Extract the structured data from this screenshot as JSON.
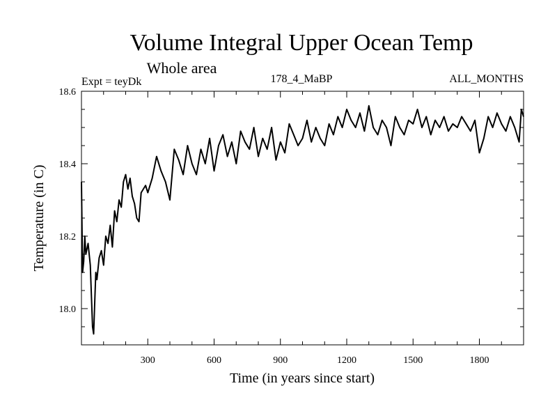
{
  "chart_data": {
    "type": "line",
    "title": "Volume Integral Upper Ocean Temp",
    "subtitle": "Whole area",
    "experiment": "Expt = teyDk",
    "run_label": "178_4_MaBP",
    "months": "ALL_MONTHS",
    "xlabel": "Time (in years since start)",
    "ylabel": "Temperature (in C)",
    "xlim": [
      0,
      2000
    ],
    "ylim": [
      17.9,
      18.6
    ],
    "xticks": [
      300,
      600,
      900,
      1200,
      1500,
      1800
    ],
    "xtick_labels": [
      "300",
      "600",
      "900",
      "1200",
      "1500",
      "1800"
    ],
    "yticks": [
      18.0,
      18.2,
      18.4,
      18.6
    ],
    "ytick_labels": [
      "18.0",
      "18.2",
      "18.4",
      "18.6"
    ],
    "series": [
      {
        "name": "Volume integral upper ocean temperature",
        "color": "#000000",
        "x": [
          0,
          5,
          10,
          15,
          20,
          30,
          40,
          50,
          55,
          60,
          65,
          70,
          80,
          90,
          100,
          110,
          120,
          130,
          140,
          150,
          160,
          170,
          180,
          190,
          200,
          210,
          220,
          230,
          240,
          250,
          260,
          270,
          280,
          290,
          300,
          320,
          340,
          360,
          380,
          400,
          420,
          440,
          460,
          480,
          500,
          520,
          540,
          560,
          580,
          600,
          620,
          640,
          660,
          680,
          700,
          720,
          740,
          760,
          780,
          800,
          820,
          840,
          860,
          880,
          900,
          920,
          940,
          960,
          980,
          1000,
          1020,
          1040,
          1060,
          1080,
          1100,
          1120,
          1140,
          1160,
          1180,
          1200,
          1220,
          1240,
          1260,
          1280,
          1300,
          1320,
          1340,
          1360,
          1380,
          1400,
          1420,
          1440,
          1460,
          1480,
          1500,
          1520,
          1540,
          1560,
          1580,
          1600,
          1620,
          1640,
          1660,
          1680,
          1700,
          1720,
          1740,
          1760,
          1780,
          1800,
          1820,
          1840,
          1860,
          1880,
          1900,
          1920,
          1940,
          1960,
          1980,
          1990,
          2000
        ],
        "values": [
          18.35,
          18.1,
          18.13,
          18.2,
          18.15,
          18.18,
          18.12,
          17.95,
          17.93,
          18.02,
          18.1,
          18.08,
          18.14,
          18.16,
          18.12,
          18.2,
          18.18,
          18.23,
          18.17,
          18.27,
          18.24,
          18.3,
          18.28,
          18.35,
          18.37,
          18.33,
          18.36,
          18.31,
          18.29,
          18.25,
          18.24,
          18.32,
          18.33,
          18.34,
          18.32,
          18.36,
          18.42,
          18.38,
          18.35,
          18.3,
          18.44,
          18.41,
          18.37,
          18.45,
          18.4,
          18.37,
          18.44,
          18.4,
          18.47,
          18.38,
          18.45,
          18.48,
          18.42,
          18.46,
          18.4,
          18.49,
          18.46,
          18.44,
          18.5,
          18.42,
          18.47,
          18.44,
          18.5,
          18.41,
          18.46,
          18.43,
          18.51,
          18.48,
          18.45,
          18.47,
          18.52,
          18.46,
          18.5,
          18.47,
          18.45,
          18.51,
          18.48,
          18.53,
          18.5,
          18.55,
          18.52,
          18.5,
          18.54,
          18.49,
          18.56,
          18.5,
          18.48,
          18.52,
          18.5,
          18.45,
          18.53,
          18.5,
          18.48,
          18.52,
          18.51,
          18.55,
          18.5,
          18.53,
          18.48,
          18.52,
          18.5,
          18.53,
          18.49,
          18.51,
          18.5,
          18.53,
          18.51,
          18.49,
          18.52,
          18.43,
          18.47,
          18.53,
          18.5,
          18.54,
          18.51,
          18.49,
          18.53,
          18.5,
          18.46,
          18.55,
          18.53
        ]
      }
    ]
  }
}
